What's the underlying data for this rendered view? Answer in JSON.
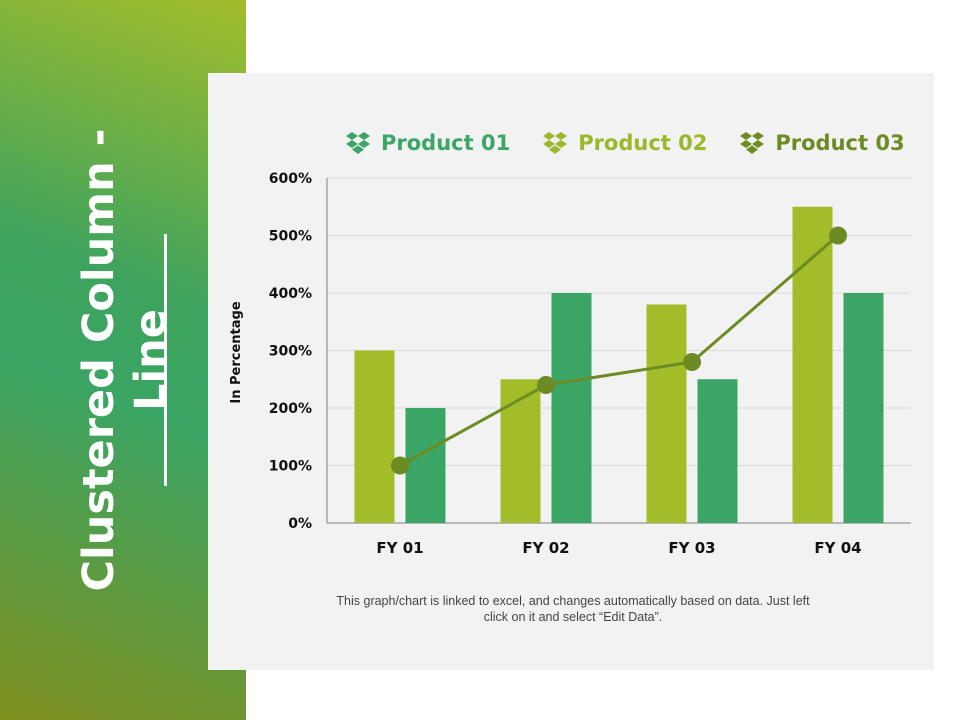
{
  "side": {
    "title_line1": "Clustered Column -",
    "title_line2": "Line"
  },
  "legend": [
    {
      "label": "Product 01",
      "color": "#3aa564",
      "icon": "dropbox-icon"
    },
    {
      "label": "Product 02",
      "color": "#9bb72a",
      "icon": "dropbox-icon"
    },
    {
      "label": "Product 03",
      "color": "#6e8a22",
      "icon": "dropbox-icon"
    }
  ],
  "footnote": "This graph/chart is linked to excel, and changes automatically based on data. Just left click on it and select “Edit Data”.",
  "chart_data": {
    "type": "bar",
    "categories": [
      "FY 01",
      "FY 02",
      "FY 03",
      "FY 04"
    ],
    "series": [
      {
        "name": "Product 02",
        "kind": "bar",
        "color": "#a3bd2a",
        "values": [
          300,
          250,
          380,
          550
        ]
      },
      {
        "name": "Product 01",
        "kind": "bar",
        "color": "#3aa564",
        "values": [
          200,
          400,
          250,
          400
        ]
      },
      {
        "name": "Product 03",
        "kind": "line",
        "color": "#6e8a22",
        "values": [
          100,
          240,
          280,
          500
        ]
      }
    ],
    "ylabel": "In Percentage",
    "ylim": [
      0,
      600
    ],
    "yticks": [
      0,
      100,
      200,
      300,
      400,
      500,
      600
    ],
    "ytick_labels": [
      "0%",
      "100%",
      "200%",
      "300%",
      "400%",
      "500%",
      "600%"
    ],
    "grid": true,
    "legend_position": "top"
  }
}
